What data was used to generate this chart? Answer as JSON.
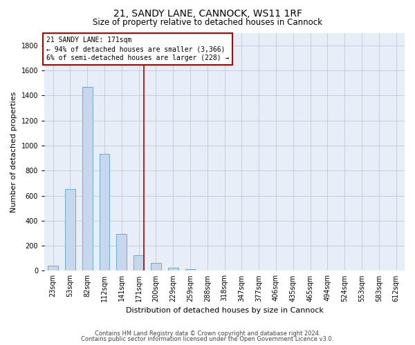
{
  "title1": "21, SANDY LANE, CANNOCK, WS11 1RF",
  "title2": "Size of property relative to detached houses in Cannock",
  "xlabel": "Distribution of detached houses by size in Cannock",
  "ylabel": "Number of detached properties",
  "categories": [
    "23sqm",
    "53sqm",
    "82sqm",
    "112sqm",
    "141sqm",
    "171sqm",
    "200sqm",
    "229sqm",
    "259sqm",
    "288sqm",
    "318sqm",
    "347sqm",
    "377sqm",
    "406sqm",
    "435sqm",
    "465sqm",
    "494sqm",
    "524sqm",
    "553sqm",
    "583sqm",
    "612sqm"
  ],
  "values": [
    40,
    650,
    1470,
    935,
    295,
    125,
    65,
    25,
    15,
    0,
    0,
    0,
    0,
    0,
    0,
    0,
    0,
    0,
    0,
    0,
    0
  ],
  "bar_color": "#c8d8ec",
  "bar_edge_color": "#6aaad4",
  "highlight_index": 5,
  "highlight_color": "#aa0000",
  "ylim": [
    0,
    1900
  ],
  "yticks": [
    0,
    200,
    400,
    600,
    800,
    1000,
    1200,
    1400,
    1600,
    1800
  ],
  "annotation_line1": "21 SANDY LANE: 171sqm",
  "annotation_line2": "← 94% of detached houses are smaller (3,366)",
  "annotation_line3": "6% of semi-detached houses are larger (228) →",
  "annotation_box_color": "#bb0000",
  "footer1": "Contains HM Land Registry data © Crown copyright and database right 2024.",
  "footer2": "Contains public sector information licensed under the Open Government Licence v3.0.",
  "bg_color": "#e8eef8",
  "grid_color": "#c0c8d8",
  "title1_fontsize": 10,
  "title2_fontsize": 8.5,
  "ylabel_fontsize": 8,
  "xlabel_fontsize": 8,
  "tick_fontsize": 7,
  "annotation_fontsize": 7,
  "footer_fontsize": 6
}
